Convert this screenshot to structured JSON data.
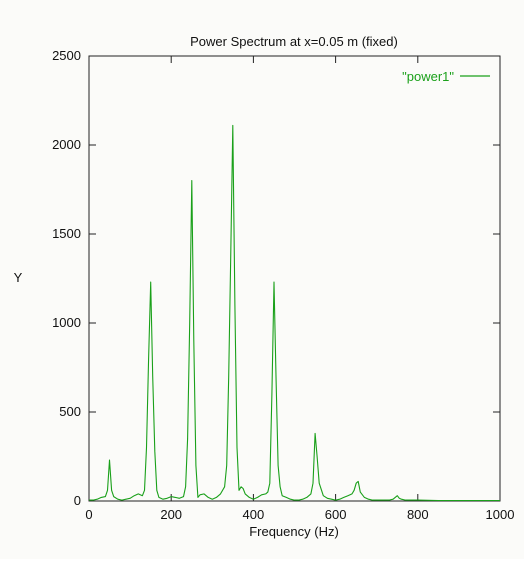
{
  "chart_data": {
    "type": "line",
    "title": "Power Spectrum at x=0.05 m (fixed)",
    "xlabel": "Frequency (Hz)",
    "ylabel": "Y",
    "xlim": [
      0,
      1000
    ],
    "ylim": [
      0,
      2500
    ],
    "xticks": [
      0,
      200,
      400,
      600,
      800,
      1000
    ],
    "yticks": [
      0,
      500,
      1000,
      1500,
      2000,
      2500
    ],
    "grid": false,
    "legend_position": "top-right",
    "series": [
      {
        "name": "\"power1\"",
        "color": "#1aa01a",
        "x": [
          0,
          10,
          20,
          30,
          40,
          45,
          50,
          55,
          60,
          70,
          80,
          90,
          100,
          110,
          120,
          130,
          135,
          140,
          145,
          150,
          155,
          160,
          165,
          170,
          180,
          190,
          200,
          210,
          220,
          230,
          235,
          240,
          245,
          250,
          255,
          260,
          265,
          270,
          280,
          290,
          300,
          310,
          320,
          330,
          335,
          340,
          345,
          350,
          355,
          360,
          365,
          370,
          375,
          380,
          390,
          400,
          410,
          420,
          430,
          435,
          440,
          445,
          450,
          455,
          460,
          465,
          470,
          480,
          490,
          500,
          510,
          520,
          530,
          540,
          545,
          550,
          555,
          560,
          570,
          580,
          590,
          600,
          610,
          620,
          630,
          640,
          645,
          650,
          655,
          660,
          670,
          680,
          690,
          700,
          710,
          720,
          730,
          740,
          745,
          750,
          755,
          760,
          770,
          780,
          790,
          800,
          850,
          900,
          950,
          1000
        ],
        "y": [
          5,
          5,
          10,
          20,
          25,
          60,
          230,
          60,
          25,
          10,
          5,
          10,
          15,
          30,
          40,
          30,
          60,
          300,
          800,
          1230,
          700,
          280,
          60,
          20,
          10,
          15,
          25,
          20,
          15,
          25,
          80,
          350,
          1000,
          1800,
          900,
          200,
          20,
          35,
          40,
          20,
          10,
          20,
          40,
          80,
          200,
          700,
          1400,
          2110,
          1100,
          300,
          60,
          80,
          70,
          40,
          20,
          10,
          20,
          35,
          40,
          50,
          100,
          600,
          1230,
          700,
          200,
          80,
          30,
          20,
          10,
          5,
          5,
          10,
          20,
          40,
          100,
          380,
          250,
          100,
          30,
          15,
          10,
          5,
          10,
          20,
          30,
          40,
          60,
          100,
          110,
          50,
          20,
          10,
          5,
          5,
          5,
          5,
          5,
          10,
          20,
          30,
          15,
          10,
          5,
          5,
          5,
          5,
          3,
          3,
          3,
          3
        ]
      }
    ]
  }
}
